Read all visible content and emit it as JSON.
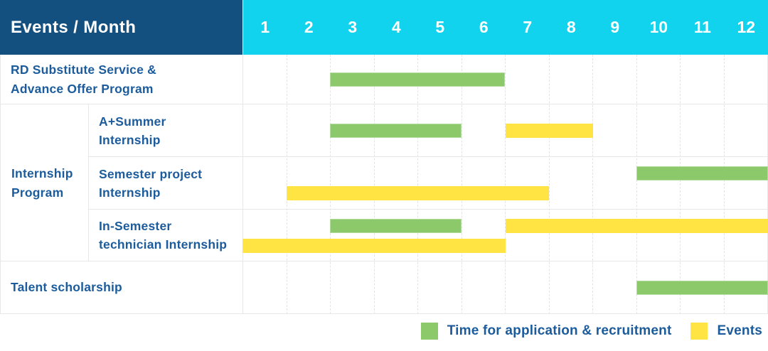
{
  "header": {
    "title": "Events / Month",
    "months": [
      "1",
      "2",
      "3",
      "4",
      "5",
      "6",
      "7",
      "8",
      "9",
      "10",
      "11",
      "12"
    ]
  },
  "colors": {
    "header_bg": "#14507f",
    "month_bg": "#12d3ee",
    "text_blue": "#1c5c9c",
    "green": "#8bc96a",
    "yellow": "#ffe443"
  },
  "legend": [
    {
      "swatch": "green",
      "type": "application",
      "label": "Time for application & recruitment"
    },
    {
      "swatch": "yellow",
      "type": "event",
      "label": "Events"
    }
  ],
  "chart_data": {
    "type": "gantt",
    "x_axis": {
      "label": "Month",
      "ticks": [
        1,
        2,
        3,
        4,
        5,
        6,
        7,
        8,
        9,
        10,
        11,
        12
      ]
    },
    "bar_types": {
      "application": "Time for application & recruitment",
      "event": "Events"
    },
    "row_group": {
      "label": "Internship\nProgram",
      "spans_rows": [
        1,
        2,
        3
      ]
    },
    "rows": [
      {
        "label": "RD Substitute Service &\nAdvance Offer Program",
        "group": "",
        "lines": [
          [
            {
              "type": "application",
              "start": 3,
              "end": 6
            }
          ]
        ]
      },
      {
        "label": "A+Summer\nInternship",
        "group": "Internship Program",
        "lines": [
          [
            {
              "type": "application",
              "start": 3,
              "end": 5
            },
            {
              "type": "event",
              "start": 7,
              "end": 8
            }
          ]
        ]
      },
      {
        "label": "Semester project\nInternship",
        "group": "Internship Program",
        "lines": [
          [
            {
              "type": "application",
              "start": 10,
              "end": 12
            }
          ],
          [
            {
              "type": "event",
              "start": 2,
              "end": 7
            }
          ]
        ]
      },
      {
        "label": "In-Semester\ntechnician Internship",
        "group": "Internship Program",
        "lines": [
          [
            {
              "type": "application",
              "start": 3,
              "end": 5
            },
            {
              "type": "event",
              "start": 7,
              "end": 12
            }
          ],
          [
            {
              "type": "event",
              "start": 1,
              "end": 6
            }
          ]
        ]
      },
      {
        "label": "Talent scholarship",
        "group": "",
        "lines": [
          [
            {
              "type": "application",
              "start": 10,
              "end": 12
            }
          ]
        ]
      }
    ]
  }
}
